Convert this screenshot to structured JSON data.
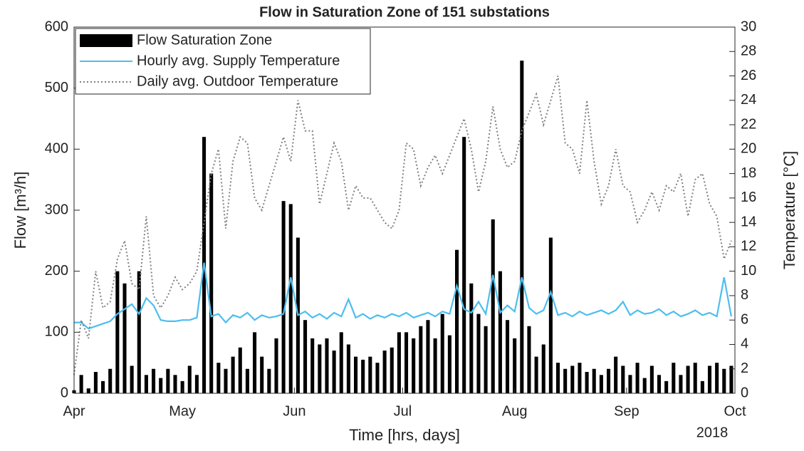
{
  "chart_data": {
    "type": "combo",
    "title": "Flow in Saturation Zone of 151 substations",
    "xlabel": "Time [hrs, days]",
    "ylabel": "Flow [m³/h]",
    "y2label": "Temperature [°C]",
    "annotation": "2018",
    "legend": "upper left",
    "x": [
      0,
      2,
      4,
      6,
      8,
      10,
      12,
      14,
      16,
      18,
      20,
      22,
      24,
      26,
      28,
      30,
      32,
      34,
      36,
      38,
      40,
      42,
      44,
      46,
      48,
      50,
      52,
      54,
      56,
      58,
      60,
      62,
      64,
      66,
      68,
      70,
      72,
      74,
      76,
      78,
      80,
      82,
      84,
      86,
      88,
      90,
      92,
      94,
      96,
      98,
      100,
      102,
      104,
      106,
      108,
      110,
      112,
      114,
      116,
      118,
      120,
      122,
      124,
      126,
      128,
      130,
      132,
      134,
      136,
      138,
      140,
      142,
      144,
      146,
      148,
      150,
      152,
      154,
      156,
      158,
      160,
      162,
      164,
      166,
      168,
      170,
      172,
      174,
      176,
      178,
      180,
      182
    ],
    "xlim": [
      0,
      183
    ],
    "xticks": [
      {
        "value": 0,
        "label": "Apr"
      },
      {
        "value": 30,
        "label": "May"
      },
      {
        "value": 61,
        "label": "Jun"
      },
      {
        "value": 91,
        "label": "Jul"
      },
      {
        "value": 122,
        "label": "Aug"
      },
      {
        "value": 153,
        "label": "Sep"
      },
      {
        "value": 183,
        "label": "Oct"
      }
    ],
    "ylim": [
      0,
      600
    ],
    "yticks": [
      0,
      100,
      200,
      300,
      400,
      500,
      600
    ],
    "y2lim": [
      0,
      30
    ],
    "y2ticks": [
      0,
      2,
      4,
      6,
      8,
      10,
      12,
      14,
      16,
      18,
      20,
      22,
      24,
      26,
      28,
      30
    ],
    "series": [
      {
        "name": "Flow Saturation Zone",
        "type": "bar",
        "color": "#000000",
        "axis": "y",
        "values": [
          5,
          30,
          8,
          35,
          20,
          40,
          200,
          180,
          45,
          200,
          30,
          40,
          25,
          40,
          30,
          20,
          45,
          30,
          420,
          360,
          50,
          40,
          60,
          75,
          40,
          100,
          60,
          40,
          90,
          315,
          310,
          255,
          120,
          90,
          80,
          90,
          70,
          100,
          80,
          60,
          55,
          60,
          50,
          70,
          75,
          100,
          100,
          90,
          110,
          120,
          90,
          130,
          95,
          235,
          420,
          180,
          130,
          110,
          285,
          200,
          120,
          90,
          545,
          110,
          60,
          80,
          255,
          50,
          40,
          45,
          50,
          35,
          40,
          30,
          40,
          60,
          45,
          30,
          50,
          25,
          45,
          30,
          20,
          50,
          30,
          45,
          50,
          20,
          45,
          50,
          40,
          45
        ]
      },
      {
        "name": "Hourly avg. Supply Temperature",
        "type": "line",
        "style": "solid",
        "color": "#4dbeee",
        "axis": "y2",
        "values": [
          5.8,
          5.8,
          5.3,
          5.5,
          5.7,
          5.9,
          6.5,
          6.9,
          7.3,
          6.5,
          7.8,
          7.2,
          6,
          5.9,
          5.9,
          6,
          6,
          6.2,
          10.7,
          6.3,
          6.5,
          5.8,
          6.4,
          6.2,
          6.6,
          6,
          6.4,
          6.2,
          6.3,
          6.5,
          9.5,
          6.4,
          6.7,
          6.2,
          6.5,
          6.1,
          6.6,
          6.3,
          7.7,
          6.2,
          6.5,
          6.1,
          6.4,
          6.2,
          6.5,
          6.3,
          6.6,
          6.2,
          6.4,
          6.6,
          6.3,
          6.7,
          6.5,
          8.8,
          6.9,
          6.6,
          7.5,
          6.5,
          9.7,
          6.6,
          7.2,
          6.7,
          9.5,
          7,
          6.5,
          6.8,
          8.3,
          6.4,
          6.6,
          6.3,
          6.7,
          6.4,
          6.6,
          6.8,
          6.5,
          6.8,
          7.5,
          6.4,
          6.8,
          6.5,
          6.6,
          6.9,
          6.4,
          6.7,
          6.3,
          6.5,
          6.8,
          6.4,
          6.6,
          6.3,
          9.5,
          6.3
        ]
      },
      {
        "name": "Daily avg. Outdoor Temperature",
        "type": "line",
        "style": "dotted",
        "color": "#808080",
        "axis": "y2",
        "values": [
          1.5,
          6,
          4.5,
          10,
          7,
          7.5,
          11,
          12.5,
          9,
          8.5,
          14.5,
          8,
          7,
          8,
          9.5,
          8.5,
          9,
          10,
          14,
          18,
          20,
          13.5,
          19,
          21,
          20.5,
          16,
          15,
          17,
          19,
          21,
          19,
          24,
          21.5,
          21.5,
          15.5,
          18,
          20.5,
          19,
          15,
          17,
          16,
          16,
          15,
          14,
          13.5,
          15,
          20.5,
          20,
          17,
          18.5,
          19.5,
          18,
          19.5,
          21,
          22.5,
          20,
          16.5,
          19,
          23.5,
          20,
          18.5,
          19,
          21.5,
          23,
          24.5,
          22,
          24,
          26,
          20.5,
          20,
          18,
          24,
          19,
          15.5,
          17,
          20,
          17,
          16.5,
          14,
          15,
          16.5,
          15,
          17,
          16.5,
          18,
          14.5,
          17.5,
          18,
          15.5,
          14.5,
          11,
          12.5
        ]
      }
    ]
  }
}
